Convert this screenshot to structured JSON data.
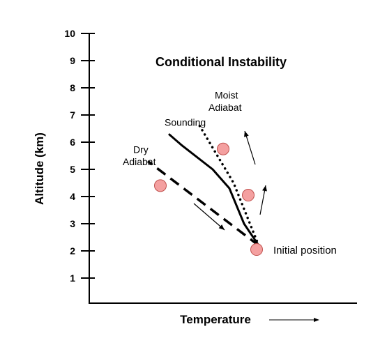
{
  "chart_data": {
    "type": "line",
    "title": "Conditional Instability",
    "xlabel": "Temperature",
    "ylabel": "Altitude (km)",
    "ylim": [
      0,
      10
    ],
    "yticks": [
      "1",
      "2",
      "3",
      "4",
      "5",
      "6",
      "7",
      "8",
      "9",
      "10"
    ],
    "grid": false,
    "series": [
      {
        "name": "Sounding",
        "style": "solid",
        "color": "#000000",
        "points": [
          [
            4.05,
            2.2
          ],
          [
            3.7,
            3.0
          ],
          [
            3.35,
            4.3
          ],
          [
            2.95,
            5.0
          ],
          [
            2.2,
            5.9
          ],
          [
            1.9,
            6.3
          ]
        ]
      },
      {
        "name": "Dry Adiabat",
        "style": "dashed",
        "color": "#000000",
        "points": [
          [
            4.05,
            2.2
          ],
          [
            1.4,
            5.3
          ]
        ]
      },
      {
        "name": "Moist Adiabat",
        "style": "dotted",
        "color": "#000000",
        "points": [
          [
            4.05,
            2.2
          ],
          [
            3.45,
            4.5
          ],
          [
            2.6,
            6.7
          ]
        ]
      }
    ],
    "parcels": [
      {
        "x": 4.0,
        "y": 2.05,
        "color": "#f4a0a0"
      },
      {
        "x": 1.7,
        "y": 4.4,
        "color": "#f4a0a0"
      },
      {
        "x": 3.8,
        "y": 4.05,
        "color": "#f4a0a0"
      },
      {
        "x": 3.2,
        "y": 5.75,
        "color": "#f4a0a0"
      }
    ],
    "annotations": [
      {
        "text": "Sounding",
        "x": 1.8,
        "y": 6.6
      },
      {
        "text": "Dry",
        "x": 1.05,
        "y": 5.6
      },
      {
        "text": "Adiabat",
        "x": 0.8,
        "y": 5.15
      },
      {
        "text": "Moist",
        "x": 3.0,
        "y": 7.6
      },
      {
        "text": "Adiabat",
        "x": 2.85,
        "y": 7.15
      },
      {
        "text": "Initial position",
        "x": 4.4,
        "y": 1.9
      }
    ]
  }
}
